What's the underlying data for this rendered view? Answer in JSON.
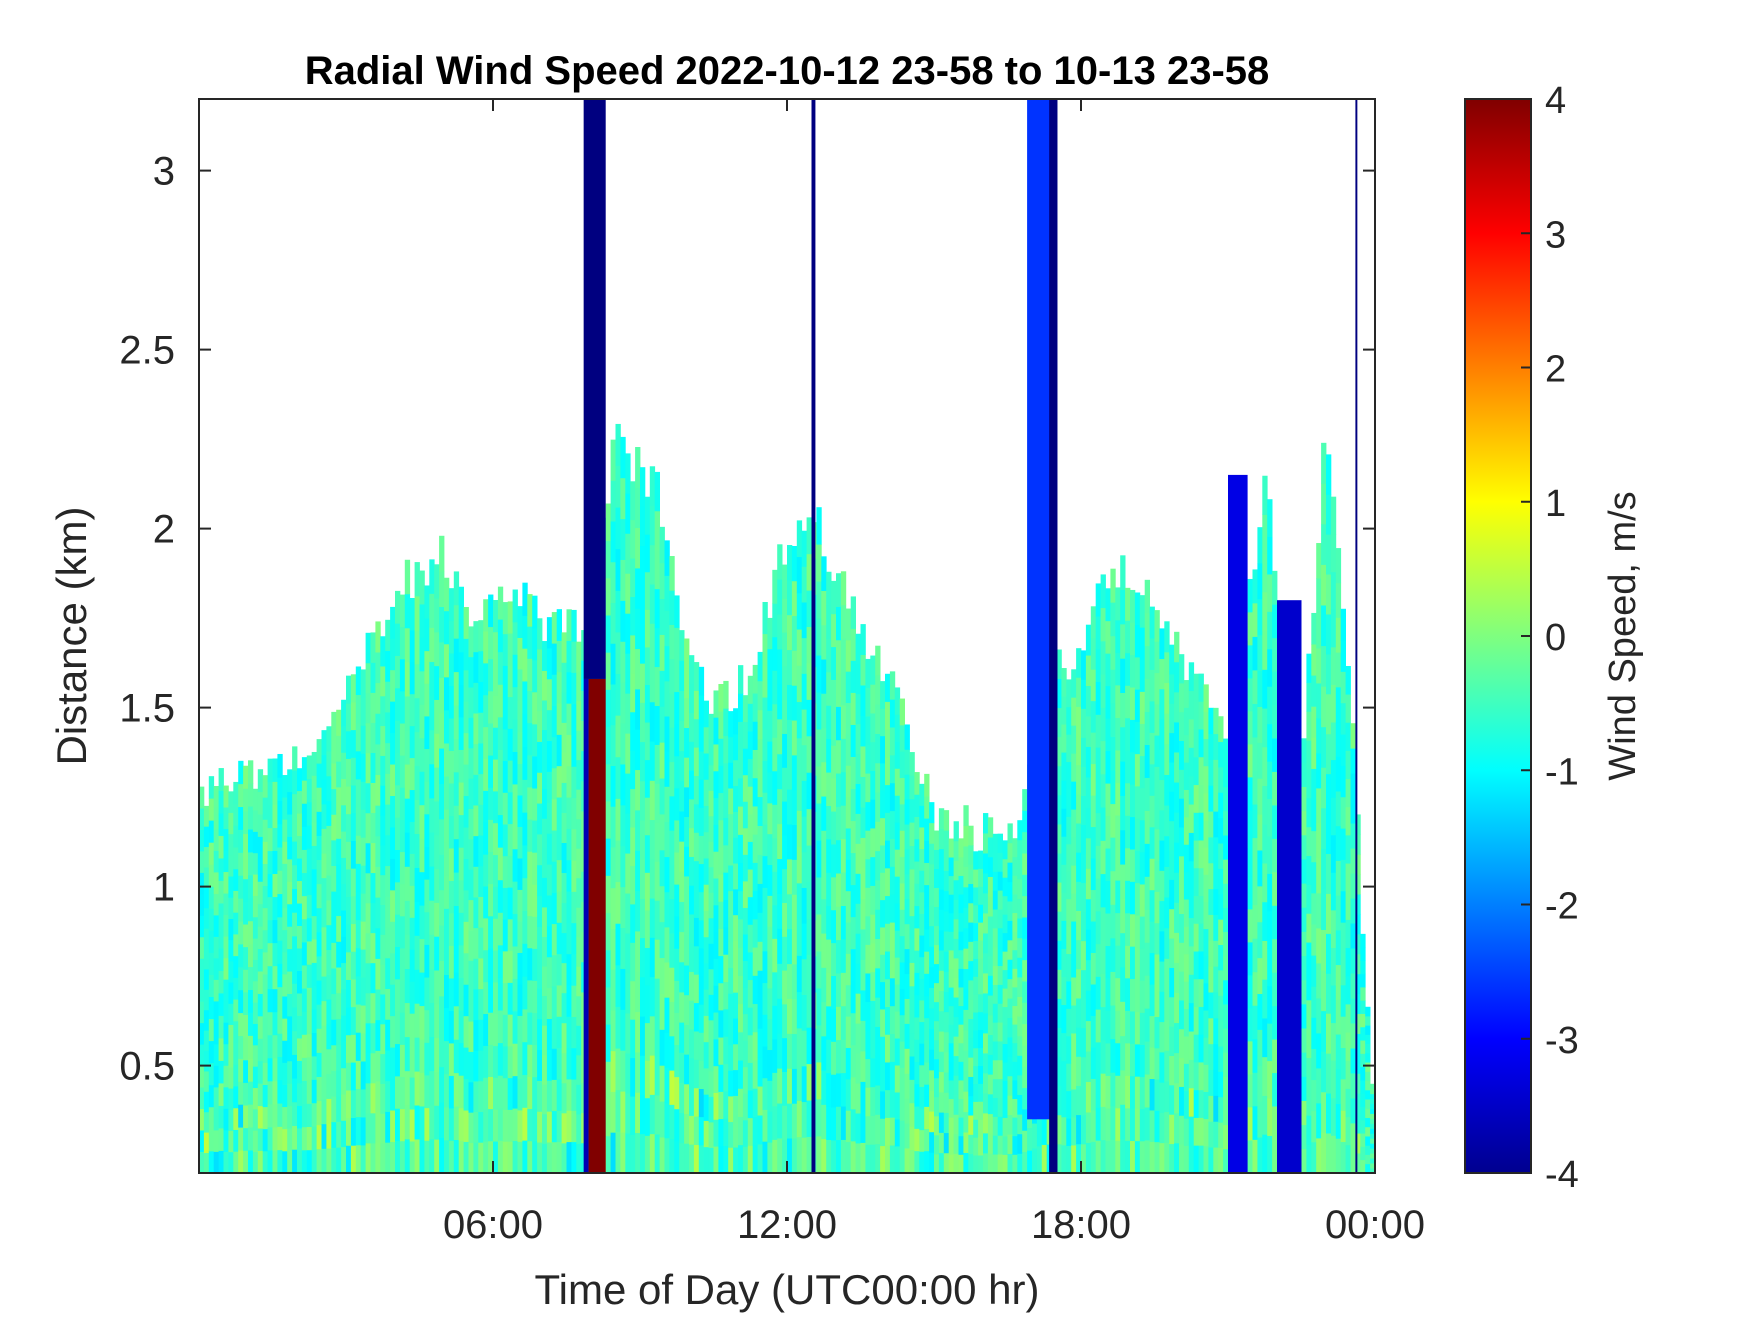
{
  "chart_data": {
    "type": "heatmap",
    "title": "Radial Wind Speed 2022-10-12 23-58 to 10-13 23-58",
    "xlabel": "Time of Day (UTC00:00 hr)",
    "ylabel": "Distance (km)",
    "colorbar_label": "Wind Speed, m/s",
    "xlim": [
      0,
      24
    ],
    "ylim": [
      0.2,
      3.2
    ],
    "clim": [
      -4,
      4
    ],
    "colormap": "jet",
    "x_ticks": [
      {
        "value": 6,
        "label": "06:00"
      },
      {
        "value": 12,
        "label": "12:00"
      },
      {
        "value": 18,
        "label": "18:00"
      },
      {
        "value": 24,
        "label": "00:00"
      }
    ],
    "y_ticks": [
      {
        "value": 0.5,
        "label": "0.5"
      },
      {
        "value": 1.0,
        "label": "1"
      },
      {
        "value": 1.5,
        "label": "1.5"
      },
      {
        "value": 2.0,
        "label": "2"
      },
      {
        "value": 2.5,
        "label": "2.5"
      },
      {
        "value": 3.0,
        "label": "3"
      }
    ],
    "colorbar_ticks": [
      {
        "value": 4,
        "label": "4"
      },
      {
        "value": 3,
        "label": "3"
      },
      {
        "value": 2,
        "label": "2"
      },
      {
        "value": 1,
        "label": "1"
      },
      {
        "value": 0,
        "label": "0"
      },
      {
        "value": -1,
        "label": "-1"
      },
      {
        "value": -2,
        "label": "-2"
      },
      {
        "value": -3,
        "label": "-3"
      },
      {
        "value": -4,
        "label": "-4"
      }
    ],
    "data_top_km": [
      {
        "hour": 0.0,
        "top": 1.22
      },
      {
        "hour": 0.6,
        "top": 1.3
      },
      {
        "hour": 1.5,
        "top": 1.35
      },
      {
        "hour": 2.3,
        "top": 1.4
      },
      {
        "hour": 3.2,
        "top": 1.6
      },
      {
        "hour": 4.2,
        "top": 1.85
      },
      {
        "hour": 5.0,
        "top": 1.93
      },
      {
        "hour": 5.6,
        "top": 1.75
      },
      {
        "hour": 6.4,
        "top": 1.85
      },
      {
        "hour": 7.2,
        "top": 1.72
      },
      {
        "hour": 7.95,
        "top": 1.72
      },
      {
        "hour": 8.5,
        "top": 2.25
      },
      {
        "hour": 9.4,
        "top": 2.1
      },
      {
        "hour": 10.0,
        "top": 1.6
      },
      {
        "hour": 10.6,
        "top": 1.5
      },
      {
        "hour": 11.3,
        "top": 1.6
      },
      {
        "hour": 11.9,
        "top": 1.95
      },
      {
        "hour": 12.5,
        "top": 2.05
      },
      {
        "hour": 13.4,
        "top": 1.75
      },
      {
        "hour": 14.3,
        "top": 1.5
      },
      {
        "hour": 15.0,
        "top": 1.2
      },
      {
        "hour": 16.0,
        "top": 1.15
      },
      {
        "hour": 16.8,
        "top": 1.18
      },
      {
        "hour": 17.3,
        "top": 1.7
      },
      {
        "hour": 17.9,
        "top": 1.6
      },
      {
        "hour": 18.6,
        "top": 1.9
      },
      {
        "hour": 19.5,
        "top": 1.8
      },
      {
        "hour": 20.4,
        "top": 1.55
      },
      {
        "hour": 21.0,
        "top": 1.4
      },
      {
        "hour": 21.8,
        "top": 2.15
      },
      {
        "hour": 22.4,
        "top": 1.1
      },
      {
        "hour": 23.0,
        "top": 2.3
      },
      {
        "hour": 23.5,
        "top": 1.55
      },
      {
        "hour": 24.0,
        "top": 0.3
      }
    ],
    "bands": [
      {
        "x0": 7.85,
        "x1": 8.3,
        "y0": 1.58,
        "y1": 3.2,
        "value": -4
      },
      {
        "x0": 7.95,
        "x1": 8.3,
        "y0": 0.2,
        "y1": 1.58,
        "value": 4
      },
      {
        "x0": 7.85,
        "x1": 7.95,
        "y0": 0.2,
        "y1": 1.58,
        "value": -3.6
      },
      {
        "x0": 12.5,
        "x1": 12.58,
        "y0": 0.2,
        "y1": 3.2,
        "value": -4
      },
      {
        "x0": 16.9,
        "x1": 17.4,
        "y0": 0.35,
        "y1": 3.2,
        "value": -2.6
      },
      {
        "x0": 17.35,
        "x1": 17.52,
        "y0": 0.2,
        "y1": 3.2,
        "value": -4
      },
      {
        "x0": 21.0,
        "x1": 21.4,
        "y0": 0.2,
        "y1": 2.15,
        "value": -3.2
      },
      {
        "x0": 22.0,
        "x1": 22.5,
        "y0": 0.2,
        "y1": 1.8,
        "value": -3.4
      },
      {
        "x0": 23.6,
        "x1": 23.64,
        "y0": 0.2,
        "y1": 3.2,
        "value": -4
      }
    ]
  }
}
